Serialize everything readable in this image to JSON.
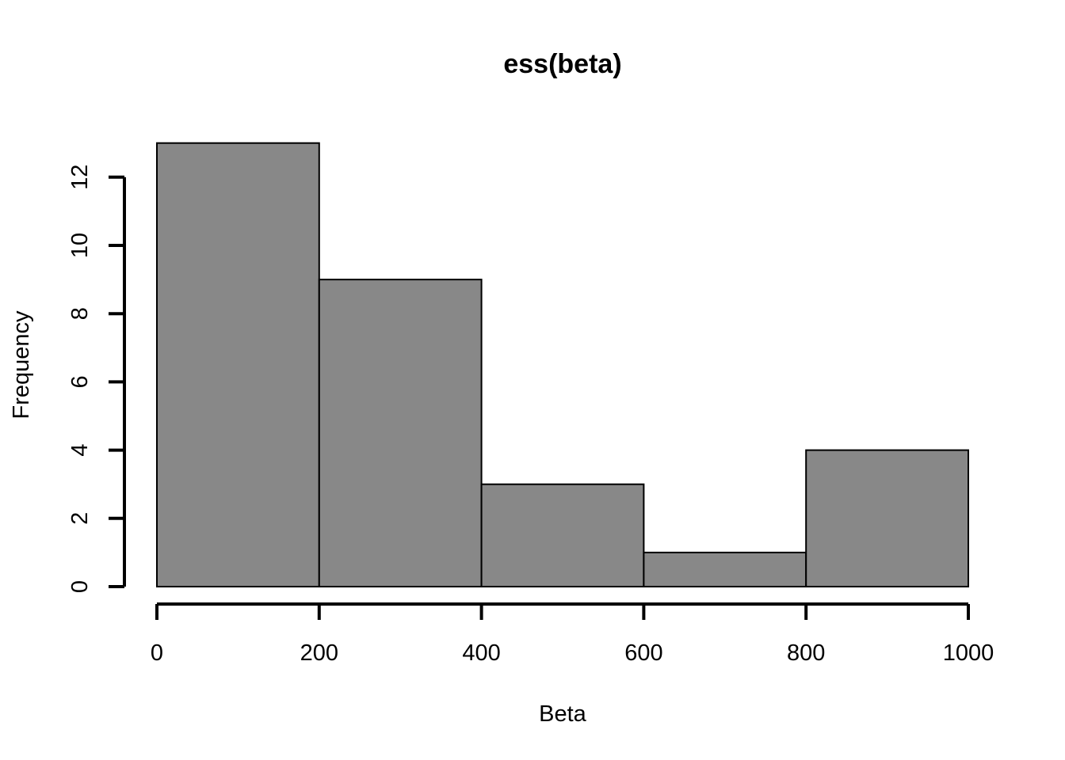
{
  "chart_data": {
    "type": "bar",
    "subtype": "histogram",
    "title": "ess(beta)",
    "xlabel": "Beta",
    "ylabel": "Frequency",
    "bins": [
      {
        "start": 0,
        "end": 200,
        "count": 13
      },
      {
        "start": 200,
        "end": 400,
        "count": 9
      },
      {
        "start": 400,
        "end": 600,
        "count": 3
      },
      {
        "start": 600,
        "end": 800,
        "count": 1
      },
      {
        "start": 800,
        "end": 1000,
        "count": 4
      }
    ],
    "xlim": [
      0,
      1000
    ],
    "ylim": [
      0,
      12
    ],
    "x_ticks": [
      0,
      200,
      400,
      600,
      800,
      1000
    ],
    "x_tick_labels": [
      "0",
      "200",
      "400",
      "600",
      "800",
      "1000"
    ],
    "y_ticks": [
      0,
      2,
      4,
      6,
      8,
      10,
      12
    ],
    "y_tick_labels": [
      "0",
      "2",
      "4",
      "6",
      "8",
      "10",
      "12"
    ],
    "bar_color": "#888888",
    "bar_border_color": "#000000",
    "background_color": "#ffffff",
    "grid": false,
    "legend": "none"
  }
}
